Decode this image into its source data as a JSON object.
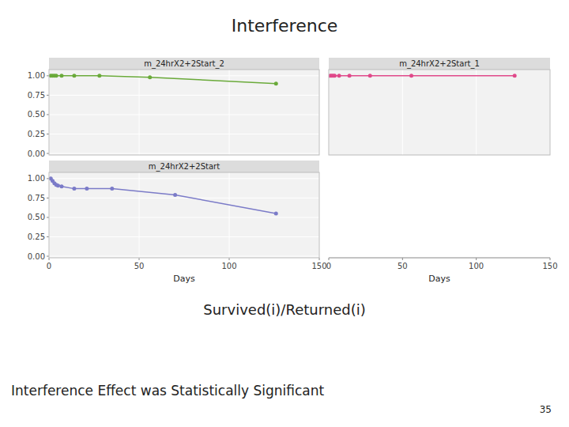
{
  "title": "Interference",
  "subtitle": "Survived(i)/Returned(i)",
  "annotations": [
    "Interference Effect was Statistically Significant",
    "35"
  ],
  "chart_data": [
    {
      "type": "line",
      "title": "m_24hrX2+2Start_2",
      "grid": true,
      "tick_labels": "y",
      "xlim": [
        0,
        150
      ],
      "ylim": [
        -0.02,
        1.08
      ],
      "xticks": [
        0,
        50,
        100,
        150
      ],
      "yticks": [
        {
          "value": 0.0,
          "label": "0.00"
        },
        {
          "value": 0.25,
          "label": "0.25"
        },
        {
          "value": 0.5,
          "label": "0.50"
        },
        {
          "value": 0.75,
          "label": "0.75"
        },
        {
          "value": 1.0,
          "label": "1.00"
        }
      ],
      "series": [
        {
          "type": "line",
          "color": "#6aaa3a",
          "x": [
            0,
            7,
            14,
            28,
            56,
            126
          ],
          "values": [
            1.0,
            1.0,
            1.0,
            1.0,
            0.98,
            0.9
          ]
        },
        {
          "type": "scatter",
          "color": "#6aaa3a",
          "x": [
            1,
            2,
            3,
            4,
            7,
            14,
            28,
            56,
            126
          ],
          "values": [
            1.0,
            1.0,
            1.0,
            1.0,
            1.0,
            1.0,
            1.0,
            0.98,
            0.9
          ]
        }
      ]
    },
    {
      "type": "line",
      "title": "m_24hrX2+2Start_1",
      "grid": true,
      "tick_labels": false,
      "xlim": [
        0,
        150
      ],
      "ylim": [
        -0.02,
        1.08
      ],
      "xticks": [
        0,
        50,
        100,
        150
      ],
      "series": [
        {
          "type": "line",
          "color": "#e0498a",
          "x": [
            0,
            7,
            14,
            28,
            56,
            126
          ],
          "values": [
            1.0,
            1.0,
            1.0,
            1.0,
            1.0,
            1.0
          ]
        },
        {
          "type": "scatter",
          "color": "#e0498a",
          "x": [
            1,
            2,
            3,
            4,
            7,
            14,
            28,
            56,
            126
          ],
          "values": [
            1.0,
            1.0,
            1.0,
            1.0,
            1.0,
            1.0,
            1.0,
            1.0,
            1.0
          ]
        }
      ]
    },
    {
      "type": "line",
      "title": "m_24hrX2+2Start",
      "grid": true,
      "x_label": "Days",
      "xlim": [
        0,
        150
      ],
      "ylim": [
        -0.02,
        1.08
      ],
      "xticks": [
        0,
        50,
        100,
        150
      ],
      "yticks": [
        {
          "value": 0.0,
          "label": "0.00"
        },
        {
          "value": 0.25,
          "label": "0.25"
        },
        {
          "value": 0.5,
          "label": "0.50"
        },
        {
          "value": 0.75,
          "label": "0.75"
        },
        {
          "value": 1.0,
          "label": "1.00"
        }
      ],
      "series": [
        {
          "type": "line",
          "color": "#7b7bc8",
          "x": [
            0,
            3,
            7,
            14,
            21,
            35,
            70,
            126
          ],
          "values": [
            1.0,
            0.94,
            0.9,
            0.87,
            0.87,
            0.87,
            0.79,
            0.55
          ]
        },
        {
          "type": "scatter",
          "color": "#7b7bc8",
          "x": [
            1,
            2,
            3,
            4,
            5,
            7,
            14,
            21,
            35,
            70,
            126
          ],
          "values": [
            1.0,
            0.97,
            0.94,
            0.92,
            0.91,
            0.9,
            0.87,
            0.87,
            0.87,
            0.79,
            0.55
          ]
        }
      ]
    },
    {
      "type": "line",
      "x_label": "Days",
      "tick_labels": "x",
      "xlim": [
        0,
        150
      ],
      "xticks": [
        0,
        50,
        100,
        150
      ],
      "series": []
    }
  ]
}
